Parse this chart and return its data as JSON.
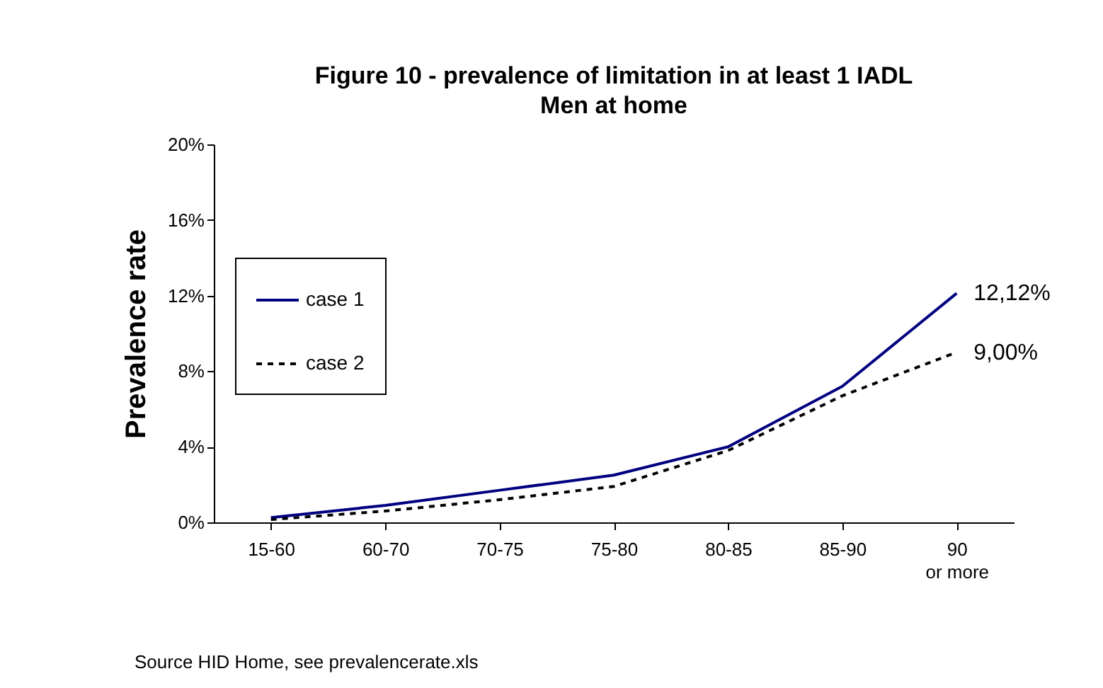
{
  "chart_data": {
    "type": "line",
    "title": "Figure 10 - prevalence of limitation in at least 1 IADL",
    "subtitle": "Men at home",
    "ylabel": "Prevalence rate",
    "categories": [
      "15-60",
      "60-70",
      "70-75",
      "75-80",
      "80-85",
      "85-90",
      "90 or more"
    ],
    "series": [
      {
        "name": "case 1",
        "color": "#000080",
        "line_style": "solid",
        "values": [
          0.25,
          0.9,
          1.7,
          2.5,
          4.0,
          7.2,
          12.12
        ],
        "value_labels": [
          null,
          null,
          null,
          null,
          null,
          null,
          "12,12%"
        ]
      },
      {
        "name": "case 2",
        "color": "#000000",
        "line_style": "dashed",
        "values": [
          0.15,
          0.6,
          1.2,
          1.9,
          3.8,
          6.7,
          9.0
        ],
        "value_labels": [
          null,
          null,
          null,
          null,
          null,
          null,
          "9,00%"
        ]
      }
    ],
    "ylim": [
      0,
      20
    ],
    "yticks": [
      {
        "value": 0,
        "label": "0%"
      },
      {
        "value": 4,
        "label": "4%"
      },
      {
        "value": 8,
        "label": "8%"
      },
      {
        "value": 12,
        "label": "12%"
      },
      {
        "value": 16,
        "label": "16%"
      },
      {
        "value": 20,
        "label": "20%"
      }
    ],
    "grid": false,
    "legend": "left",
    "marker": "none",
    "annotations": [
      "Source HID Home, see prevalencerate.xls"
    ]
  }
}
